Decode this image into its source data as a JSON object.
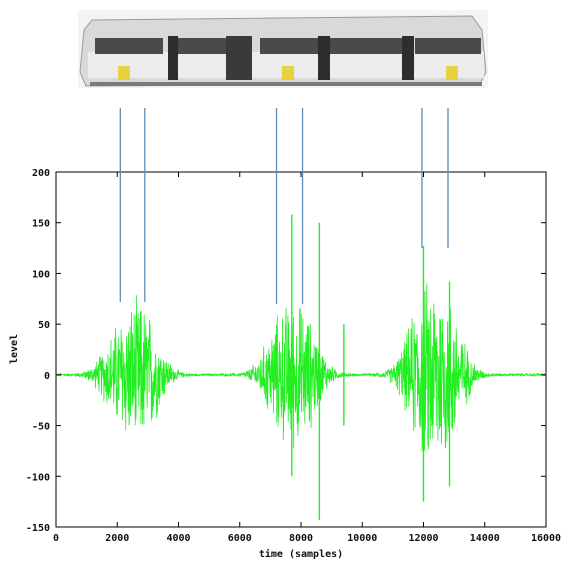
{
  "chart_data": {
    "type": "line",
    "xlabel": "time (samples)",
    "ylabel": "level",
    "xlim": [
      0,
      16000
    ],
    "ylim": [
      -150,
      200
    ],
    "xticks": [
      "0",
      "2000",
      "4000",
      "6000",
      "8000",
      "10000",
      "12000",
      "14000",
      "16000"
    ],
    "yticks": [
      "200",
      "150",
      "100",
      "50",
      "0",
      "-50",
      "-100",
      "-150"
    ],
    "grid": false,
    "colors": {
      "signal": "#22ee22",
      "marker": "#5b8db8",
      "frame": "#000000"
    },
    "series": [
      {
        "bursts": [
          {
            "center": 2100,
            "width": 700,
            "peak": 50
          },
          {
            "center": 2900,
            "width": 650,
            "peak": 62
          },
          {
            "center": 7300,
            "width": 650,
            "peak": 55
          },
          {
            "center": 8100,
            "width": 650,
            "peak": 60
          },
          {
            "center": 12000,
            "width": 700,
            "peak": 80
          },
          {
            "center": 12800,
            "width": 650,
            "peak": 70
          }
        ],
        "spikes": [
          {
            "x": 7700,
            "min": -100,
            "max": 158
          },
          {
            "x": 8600,
            "min": -143,
            "max": 150
          },
          {
            "x": 9400,
            "min": -50,
            "max": 50
          },
          {
            "x": 12000,
            "min": -125,
            "max": 127
          },
          {
            "x": 12850,
            "min": -110,
            "max": 92
          }
        ]
      }
    ],
    "marker_lines": [
      {
        "x": 2100,
        "y_bottom": 72
      },
      {
        "x": 2900,
        "y_bottom": 72
      },
      {
        "x": 7200,
        "y_bottom": 70
      },
      {
        "x": 8050,
        "y_bottom": 70
      },
      {
        "x": 11950,
        "y_bottom": 125
      },
      {
        "x": 12800,
        "y_bottom": 125
      }
    ]
  },
  "illustration": {
    "icon": "tram-icon"
  }
}
